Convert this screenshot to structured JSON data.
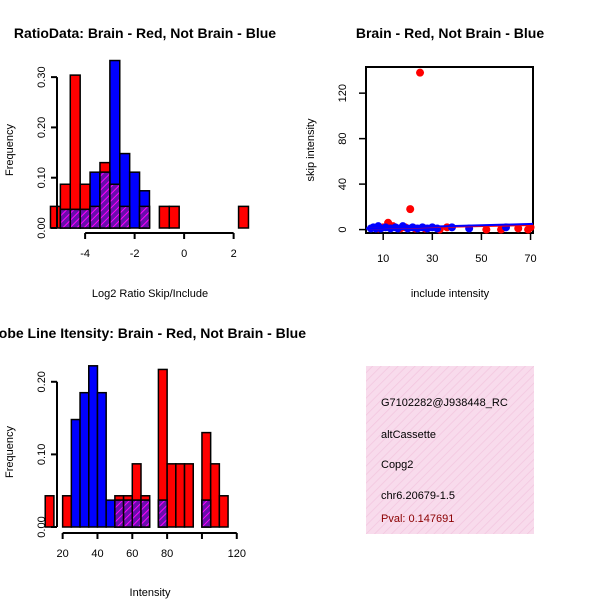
{
  "chart_data": [
    {
      "type": "bar",
      "id": "ratio_hist",
      "title": "RatioData: Brain - Red, Not Brain - Blue",
      "xlabel": "Log2 Ratio Skip/Include",
      "ylabel": "Frequency",
      "xlim": [
        -5.5,
        2.5
      ],
      "ylim": [
        0,
        0.34
      ],
      "xticks": [
        -4,
        -2,
        0,
        2
      ],
      "yticks": [
        0.0,
        0.1,
        0.2,
        0.3
      ],
      "xtick_labels": [
        "-4",
        "-2",
        "0",
        "2"
      ],
      "ytick_labels": [
        "0.00",
        "0.10",
        "0.20",
        "0.30"
      ],
      "bin_width": 0.4,
      "series": [
        {
          "name": "Brain",
          "color": "#ff0000",
          "bins": [
            [
              -5.4,
              0.043
            ],
            [
              -5.0,
              0.087
            ],
            [
              -4.6,
              0.304
            ],
            [
              -4.2,
              0.087
            ],
            [
              -3.8,
              0.043
            ],
            [
              -3.4,
              0.13
            ],
            [
              -3.0,
              0.087
            ],
            [
              -2.6,
              0.043
            ],
            [
              -1.8,
              0.043
            ],
            [
              -1.0,
              0.043
            ],
            [
              -0.6,
              0.043
            ],
            [
              2.2,
              0.043
            ]
          ]
        },
        {
          "name": "Not Brain",
          "color": "#0000ff",
          "bins": [
            [
              -5.0,
              0.037
            ],
            [
              -4.6,
              0.037
            ],
            [
              -4.2,
              0.037
            ],
            [
              -3.8,
              0.111
            ],
            [
              -3.4,
              0.111
            ],
            [
              -3.0,
              0.333
            ],
            [
              -2.6,
              0.148
            ],
            [
              -2.2,
              0.111
            ],
            [
              -1.8,
              0.074
            ]
          ]
        }
      ]
    },
    {
      "type": "scatter",
      "id": "skip_vs_include",
      "title": "Brain - Red, Not Brain - Blue",
      "xlabel": "include intensity",
      "ylabel": "skip intensity",
      "xlim": [
        3,
        71
      ],
      "ylim": [
        -3,
        143
      ],
      "xticks": [
        10,
        30,
        50,
        70
      ],
      "yticks": [
        0,
        40,
        80,
        120
      ],
      "xtick_labels": [
        "10",
        "30",
        "50",
        "70"
      ],
      "ytick_labels": [
        "0",
        "40",
        "80",
        "120"
      ],
      "series": [
        {
          "name": "Brain",
          "color": "#ff0000",
          "points": [
            [
              25,
              138
            ],
            [
              21,
              18
            ],
            [
              12,
              6
            ],
            [
              8,
              1
            ],
            [
              10,
              2
            ],
            [
              14,
              3
            ],
            [
              17,
              1
            ],
            [
              19,
              2
            ],
            [
              23,
              1
            ],
            [
              27,
              1
            ],
            [
              33,
              0
            ],
            [
              36,
              2
            ],
            [
              52,
              0
            ],
            [
              58,
              0
            ],
            [
              65,
              1
            ],
            [
              69,
              0
            ],
            [
              70,
              2
            ]
          ],
          "fit": [
            [
              3,
              1
            ],
            [
              71,
              4
            ]
          ]
        },
        {
          "name": "Not Brain",
          "color": "#0000ff",
          "points": [
            [
              5,
              1
            ],
            [
              6,
              2
            ],
            [
              7,
              1
            ],
            [
              8,
              3
            ],
            [
              9,
              1
            ],
            [
              11,
              2
            ],
            [
              13,
              1
            ],
            [
              15,
              2
            ],
            [
              16,
              1
            ],
            [
              18,
              3
            ],
            [
              20,
              1
            ],
            [
              22,
              2
            ],
            [
              24,
              1
            ],
            [
              26,
              2
            ],
            [
              28,
              1
            ],
            [
              30,
              2
            ],
            [
              32,
              1
            ],
            [
              38,
              2
            ],
            [
              45,
              1
            ],
            [
              60,
              2
            ]
          ],
          "fit": [
            [
              3,
              1
            ],
            [
              71,
              5
            ]
          ]
        }
      ]
    },
    {
      "type": "bar",
      "id": "intensity_hist",
      "title": "Probe Line Itensity: Brain - Red, Not Brain - Blue",
      "xlabel": "Intensity",
      "ylabel": "Frequency",
      "xlim": [
        7,
        123
      ],
      "ylim": [
        0,
        0.23
      ],
      "xticks": [
        20,
        40,
        60,
        80,
        100,
        120
      ],
      "yticks": [
        0.0,
        0.1,
        0.2
      ],
      "xtick_labels": [
        "20",
        "40",
        "60",
        "80",
        "",
        "120"
      ],
      "ytick_labels": [
        "0.00",
        "0.10",
        "0.20"
      ],
      "bin_width": 5,
      "series": [
        {
          "name": "Brain",
          "color": "#ff0000",
          "bins": [
            [
              10,
              0.043
            ],
            [
              20,
              0.043
            ],
            [
              50,
              0.043
            ],
            [
              55,
              0.043
            ],
            [
              60,
              0.087
            ],
            [
              65,
              0.043
            ],
            [
              75,
              0.217
            ],
            [
              80,
              0.087
            ],
            [
              85,
              0.087
            ],
            [
              90,
              0.087
            ],
            [
              100,
              0.13
            ],
            [
              105,
              0.087
            ],
            [
              110,
              0.043
            ]
          ]
        },
        {
          "name": "Not Brain",
          "color": "#0000ff",
          "bins": [
            [
              25,
              0.148
            ],
            [
              30,
              0.185
            ],
            [
              35,
              0.222
            ],
            [
              40,
              0.185
            ],
            [
              45,
              0.037
            ],
            [
              50,
              0.037
            ],
            [
              55,
              0.037
            ],
            [
              60,
              0.037
            ],
            [
              65,
              0.037
            ],
            [
              75,
              0.037
            ],
            [
              100,
              0.037
            ]
          ]
        }
      ]
    }
  ],
  "info_panel": {
    "probe_id": "G7102282@J938448_RC",
    "event_type": "altCassette",
    "gene": "Copg2",
    "location": "chr6.20679-1.5",
    "pval": "Pval: 0.147691",
    "background_color": "#f6d8ea"
  }
}
